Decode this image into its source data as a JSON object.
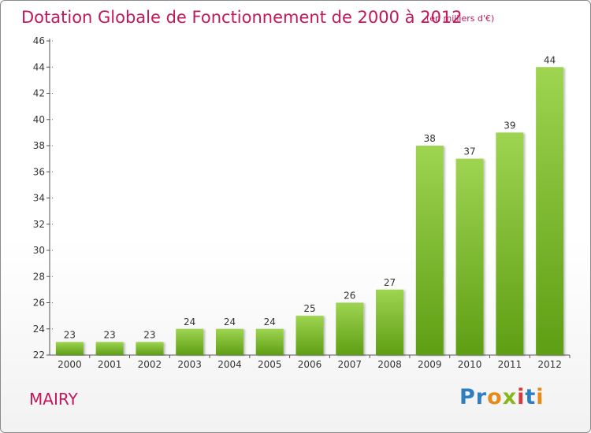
{
  "header": {
    "title": "Dotation Globale de Fonctionnement de 2000 à 2012",
    "subtitle": "(en milliers d'€)"
  },
  "footer": {
    "commune": "MAIRY",
    "logo_letters": [
      "P",
      "r",
      "o",
      "x",
      "i",
      "t",
      "i"
    ],
    "logo_colors": [
      "#2d7fc1",
      "#2d7fc1",
      "#e68a1a",
      "#86b81e",
      "#d63a3a",
      "#2d7fc1",
      "#e68a1a"
    ]
  },
  "colors": {
    "bar_light": "#9ed451",
    "bar_dark": "#5e9e14",
    "axis": "#555555",
    "grid": "#666666"
  },
  "chart_data": {
    "type": "bar",
    "title": "Dotation Globale de Fonctionnement de 2000 à 2012",
    "subtitle": "(en milliers d'€)",
    "categories": [
      "2000",
      "2001",
      "2002",
      "2003",
      "2004",
      "2005",
      "2006",
      "2007",
      "2008",
      "2009",
      "2010",
      "2011",
      "2012"
    ],
    "values": [
      23,
      23,
      23,
      24,
      24,
      24,
      25,
      26,
      27,
      38,
      37,
      39,
      44
    ],
    "ylim": [
      22,
      46
    ],
    "yticks": [
      22,
      24,
      26,
      28,
      30,
      32,
      34,
      36,
      38,
      40,
      42,
      44,
      46
    ],
    "grid": false,
    "legend": "none"
  }
}
